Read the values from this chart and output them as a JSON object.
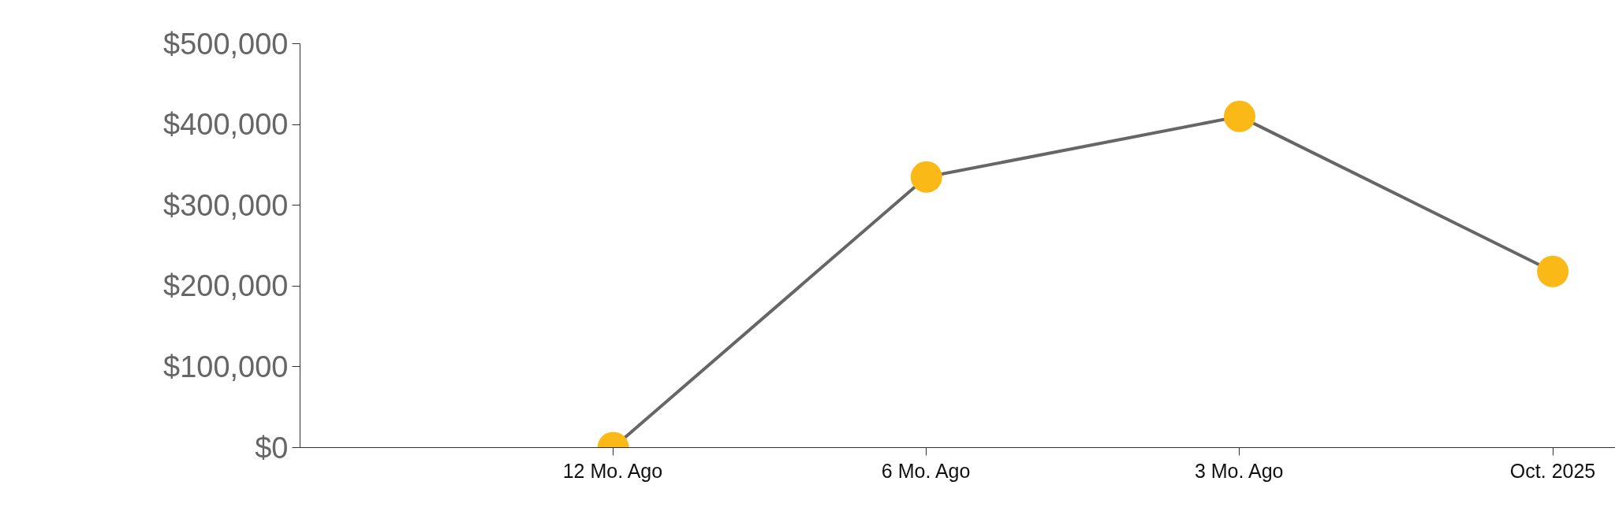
{
  "chart_data": {
    "type": "line",
    "categories": [
      "12 Mo. Ago",
      "6 Mo. Ago",
      "3 Mo. Ago",
      "Oct. 2025"
    ],
    "series": [
      {
        "color": "#666666",
        "colors": [
          "#fbb917",
          "#fbb917",
          "#fbb917",
          "#fbb917"
        ],
        "values": [
          0,
          335000,
          410000,
          218000
        ]
      }
    ],
    "marker": "circle",
    "ylim": [
      0,
      500000
    ],
    "yticks": [
      {
        "value": 0,
        "label": "$0"
      },
      {
        "value": 100000,
        "label": "$100,000"
      },
      {
        "value": 200000,
        "label": "$200,000"
      },
      {
        "value": 300000,
        "label": "$300,000"
      },
      {
        "value": 400000,
        "label": "$400,000"
      },
      {
        "value": 500000,
        "label": "$500,000"
      }
    ],
    "grid": false
  }
}
